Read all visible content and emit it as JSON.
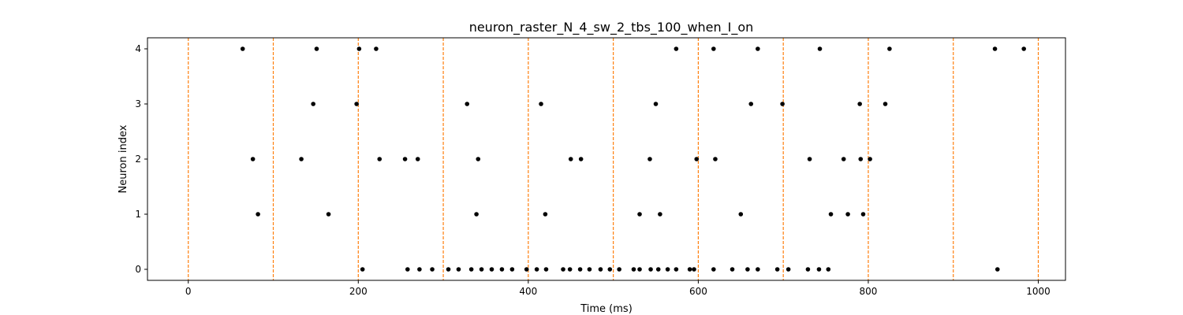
{
  "chart_data": {
    "type": "scatter",
    "title": "neuron_raster_N_4_sw_2_tbs_100_when_I_on",
    "xlabel": "Time (ms)",
    "ylabel": "Neuron index",
    "xlim": [
      -48,
      1032
    ],
    "ylim": [
      -0.2,
      4.2
    ],
    "xticks": [
      0,
      200,
      400,
      600,
      800,
      1000
    ],
    "yticks": [
      0,
      1,
      2,
      3,
      4
    ],
    "marker_color": "#000000",
    "vlines": {
      "x": [
        0,
        100,
        200,
        300,
        400,
        500,
        600,
        700,
        800,
        900,
        1000
      ],
      "color": "#ff7f0e",
      "style": "dashed"
    },
    "series": [
      {
        "neuron": 0,
        "x": [
          205,
          258,
          272,
          287,
          306,
          318,
          333,
          345,
          357,
          369,
          381,
          398,
          410,
          421,
          441,
          449,
          461,
          472,
          485,
          496,
          507,
          524,
          531,
          544,
          553,
          564,
          574,
          590,
          595,
          618,
          640,
          658,
          670,
          693,
          706,
          729,
          742,
          753,
          952
        ]
      },
      {
        "neuron": 1,
        "x": [
          82,
          165,
          339,
          420,
          531,
          555,
          650,
          756,
          776,
          794
        ]
      },
      {
        "neuron": 2,
        "x": [
          76,
          133,
          225,
          255,
          270,
          341,
          450,
          462,
          543,
          598,
          620,
          731,
          771,
          791,
          802
        ]
      },
      {
        "neuron": 3,
        "x": [
          147,
          198,
          328,
          415,
          550,
          662,
          699,
          790,
          820
        ]
      },
      {
        "neuron": 4,
        "x": [
          64,
          151,
          201,
          221,
          574,
          618,
          670,
          743,
          825,
          949,
          983
        ]
      }
    ]
  }
}
